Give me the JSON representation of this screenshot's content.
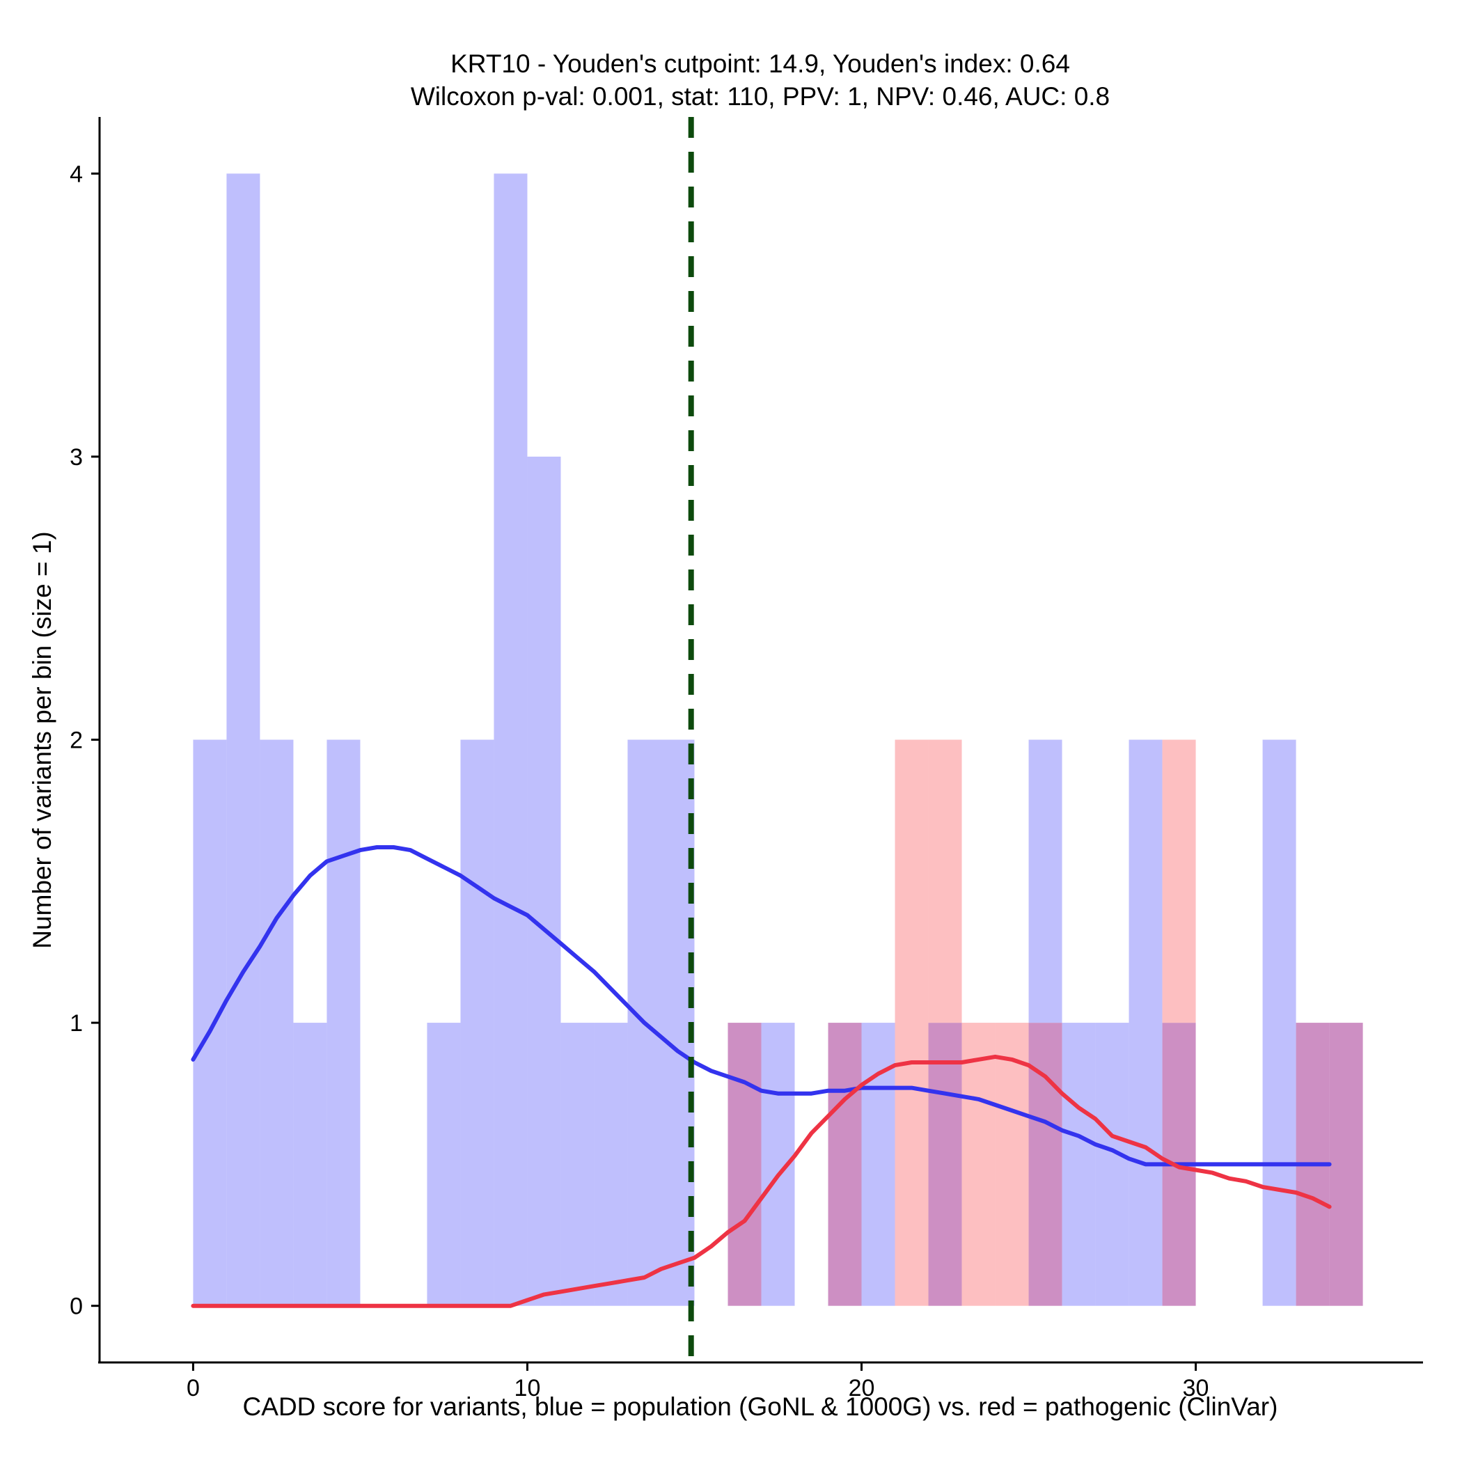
{
  "chart_data": {
    "type": "histogram",
    "title_line1": "KRT10 - Youden's cutpoint: 14.9, Youden's index: 0.64",
    "title_line2": "Wilcoxon p-val: 0.001, stat: 110, PPV: 1, NPV: 0.46, AUC: 0.8",
    "xlabel": "CADD score for variants, blue = population (GoNL & 1000G) vs. red = pathogenic (ClinVar)",
    "ylabel": "Number of variants per bin (size = 1)",
    "xlim": [
      -2.8,
      36.8
    ],
    "ylim": [
      -0.2,
      4.2
    ],
    "x_ticks": [
      0,
      10,
      20,
      30
    ],
    "y_ticks": [
      0,
      1,
      2,
      3,
      4
    ],
    "bin_width": 1,
    "cutpoint": 14.9,
    "colors": {
      "population_fill": "#bfbffd",
      "pathogenic_fill": "#fdbfc1",
      "overlap_fill": "#cd8fc3",
      "population_line": "#3333ee",
      "pathogenic_line": "#ee3344",
      "cutpoint_line": "#0d4a0d"
    },
    "series": [
      {
        "name": "population (GoNL & 1000G)",
        "bins": [
          {
            "start": 0,
            "count": 2
          },
          {
            "start": 1,
            "count": 4
          },
          {
            "start": 2,
            "count": 2
          },
          {
            "start": 3,
            "count": 1
          },
          {
            "start": 4,
            "count": 2
          },
          {
            "start": 7,
            "count": 1
          },
          {
            "start": 8,
            "count": 2
          },
          {
            "start": 9,
            "count": 4
          },
          {
            "start": 10,
            "count": 3
          },
          {
            "start": 11,
            "count": 1
          },
          {
            "start": 12,
            "count": 1
          },
          {
            "start": 13,
            "count": 2
          },
          {
            "start": 14,
            "count": 2
          },
          {
            "start": 16,
            "count": 1
          },
          {
            "start": 17,
            "count": 1
          },
          {
            "start": 19,
            "count": 1
          },
          {
            "start": 20,
            "count": 1
          },
          {
            "start": 22,
            "count": 1
          },
          {
            "start": 25,
            "count": 2
          },
          {
            "start": 26,
            "count": 1
          },
          {
            "start": 27,
            "count": 1
          },
          {
            "start": 28,
            "count": 2
          },
          {
            "start": 29,
            "count": 1
          },
          {
            "start": 32,
            "count": 2
          },
          {
            "start": 33,
            "count": 1
          },
          {
            "start": 34,
            "count": 1
          }
        ],
        "density": {
          "x": [
            0,
            0.5,
            1,
            1.5,
            2,
            2.5,
            3,
            3.5,
            4,
            4.5,
            5,
            5.5,
            6,
            6.5,
            7,
            7.5,
            8,
            8.5,
            9,
            9.5,
            10,
            10.5,
            11,
            11.5,
            12,
            12.5,
            13,
            13.5,
            14,
            14.5,
            15,
            15.5,
            16,
            16.5,
            17,
            17.5,
            18,
            18.5,
            19,
            19.5,
            20,
            20.5,
            21,
            21.5,
            22,
            22.5,
            23,
            23.5,
            24,
            24.5,
            25,
            25.5,
            26,
            26.5,
            27,
            27.5,
            28,
            28.5,
            29,
            29.5,
            30,
            30.5,
            31,
            31.5,
            32,
            32.5,
            33,
            33.5,
            34
          ],
          "y": [
            0.87,
            0.97,
            1.08,
            1.18,
            1.27,
            1.37,
            1.45,
            1.52,
            1.57,
            1.59,
            1.61,
            1.62,
            1.62,
            1.61,
            1.58,
            1.55,
            1.52,
            1.48,
            1.44,
            1.41,
            1.38,
            1.33,
            1.28,
            1.23,
            1.18,
            1.12,
            1.06,
            1.0,
            0.95,
            0.9,
            0.86,
            0.83,
            0.81,
            0.79,
            0.76,
            0.75,
            0.75,
            0.75,
            0.76,
            0.76,
            0.77,
            0.77,
            0.77,
            0.77,
            0.76,
            0.75,
            0.74,
            0.73,
            0.71,
            0.69,
            0.67,
            0.65,
            0.62,
            0.6,
            0.57,
            0.55,
            0.52,
            0.5,
            0.5,
            0.5,
            0.5,
            0.5,
            0.5,
            0.5,
            0.5,
            0.5,
            0.5,
            0.5,
            0.5
          ]
        }
      },
      {
        "name": "pathogenic (ClinVar)",
        "bins": [
          {
            "start": 16,
            "count": 1
          },
          {
            "start": 19,
            "count": 1
          },
          {
            "start": 21,
            "count": 2
          },
          {
            "start": 22,
            "count": 2
          },
          {
            "start": 23,
            "count": 1
          },
          {
            "start": 24,
            "count": 1
          },
          {
            "start": 25,
            "count": 1
          },
          {
            "start": 29,
            "count": 2
          },
          {
            "start": 33,
            "count": 1
          },
          {
            "start": 34,
            "count": 1
          }
        ],
        "density": {
          "x": [
            0,
            1,
            2,
            3,
            4,
            5,
            6,
            7,
            8,
            9,
            9.5,
            10,
            10.5,
            11,
            11.5,
            12,
            12.5,
            13,
            13.5,
            14,
            14.5,
            15,
            15.5,
            16,
            16.5,
            17,
            17.5,
            18,
            18.5,
            19,
            19.5,
            20,
            20.5,
            21,
            21.5,
            22,
            22.5,
            23,
            23.5,
            24,
            24.5,
            25,
            25.5,
            26,
            26.5,
            27,
            27.5,
            28,
            28.5,
            29,
            29.5,
            30,
            30.5,
            31,
            31.5,
            32,
            32.5,
            33,
            33.5,
            34
          ],
          "y": [
            0,
            0,
            0,
            0,
            0,
            0,
            0,
            0,
            0,
            0,
            0,
            0.02,
            0.04,
            0.05,
            0.06,
            0.07,
            0.08,
            0.09,
            0.1,
            0.13,
            0.15,
            0.17,
            0.21,
            0.26,
            0.3,
            0.38,
            0.46,
            0.53,
            0.61,
            0.67,
            0.73,
            0.78,
            0.82,
            0.85,
            0.86,
            0.86,
            0.86,
            0.86,
            0.87,
            0.88,
            0.87,
            0.85,
            0.81,
            0.75,
            0.7,
            0.66,
            0.6,
            0.58,
            0.56,
            0.52,
            0.49,
            0.48,
            0.47,
            0.45,
            0.44,
            0.42,
            0.41,
            0.4,
            0.38,
            0.35
          ]
        }
      }
    ]
  }
}
